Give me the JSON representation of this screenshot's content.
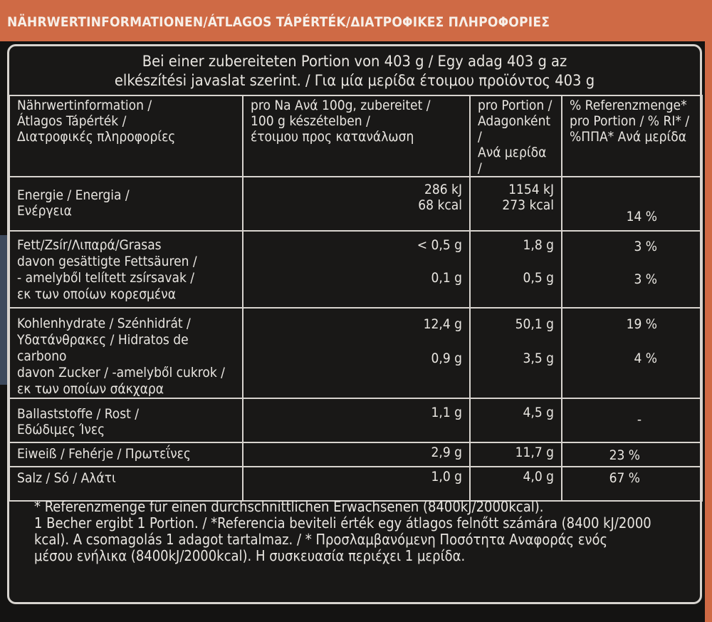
{
  "banner": "NÄHRWERTINFORMATIONEN/ÁTLAGOS TÁPÉRTÉK/ΔΙΑΤΡΟΦΙΚΕΣ ΠΛΗΡΟΦΟΡΙΕΣ",
  "intro": {
    "line1": "Bei einer zubereiteten Portion von 403 g / Egy adag 403 g az",
    "line2": "elkészítési javaslat szerint. / Για μία μερίδα έτοιμου προϊόντος 403 g"
  },
  "table": {
    "headers": {
      "col1": [
        "Nährwertinformation /",
        "Átlagos Tápérték /",
        "Διατροφικές πληροφορίες"
      ],
      "col2": [
        "pro Na Ανά 100g, zubereitet /",
        "100 g készételben /",
        "έτοιμου προς κατανάλωση"
      ],
      "col3": [
        "pro Portion /",
        "Adagonként /",
        "Ανά μερίδα /"
      ],
      "col4": [
        "% Referenzmenge*",
        "pro Portion / % RI* /",
        "%ΠΠΑ* Ανά μερίδα"
      ]
    },
    "energy": {
      "label": [
        "Energie / Energia /",
        "Ενέργεια"
      ],
      "per100": [
        "286 kJ",
        "68 kcal"
      ],
      "portion": [
        "1154 kJ",
        "273 kcal"
      ],
      "ri": "14 %"
    },
    "fat": {
      "label": [
        "Fett/Zsír/Λιπαρά/Grasas",
        "davon gesättigte Fettsäuren /",
        "- amelyből telített zsírsavak /",
        "εκ των οποίων κορεσμένα"
      ],
      "fat_per100": "< 0,5 g",
      "fat_portion": "1,8 g",
      "fat_ri": "3 %",
      "sat_per100": "0,1 g",
      "sat_portion": "0,5 g",
      "sat_ri": "3 %"
    },
    "carbs": {
      "label": [
        "Kohlenhydrate / Szénhidrát /",
        "Υδατάνθρακες / Hidratos de carbono",
        "davon Zucker / -amelyből cukrok /",
        "εκ των οποίων σάκχαρα"
      ],
      "carb_per100": "12,4 g",
      "carb_portion": "50,1 g",
      "carb_ri": "19 %",
      "sugar_per100": "0,9 g",
      "sugar_portion": "3,5 g",
      "sugar_ri": "4 %"
    },
    "fibre": {
      "label": [
        "Ballaststoffe / Rost /",
        "Εδώδιμες Ίνες"
      ],
      "per100": "1,1 g",
      "portion": "4,5 g",
      "ri": "-"
    },
    "protein": {
      "label": "Eiweiß / Fehérje / Πρωτεΐνες",
      "per100": "2,9 g",
      "portion": "11,7 g",
      "ri": "23 %"
    },
    "salt": {
      "label": "Salz / Só / Αλάτι",
      "per100": "1,0 g",
      "portion": "4,0 g",
      "ri": "67 %"
    }
  },
  "footnote": {
    "line1": "* Referenzmenge für einen durchschnittlichen Erwachsenen (8400kJ/2000kcal).",
    "line2": "1 Becher ergibt 1 Portion. / *Referencia beviteli érték egy átlagos felnőtt számára (8400 kJ/2000",
    "line3": "kcal). A csomagolás 1 adagot tartalmaz. / * Προσλαμβανόμενη Ποσότητα Αναφοράς ενός",
    "line4": "μέσου ενήλικα (8400kJ/2000kcal). Η συσκευασία περιέχει 1 μερίδα."
  }
}
